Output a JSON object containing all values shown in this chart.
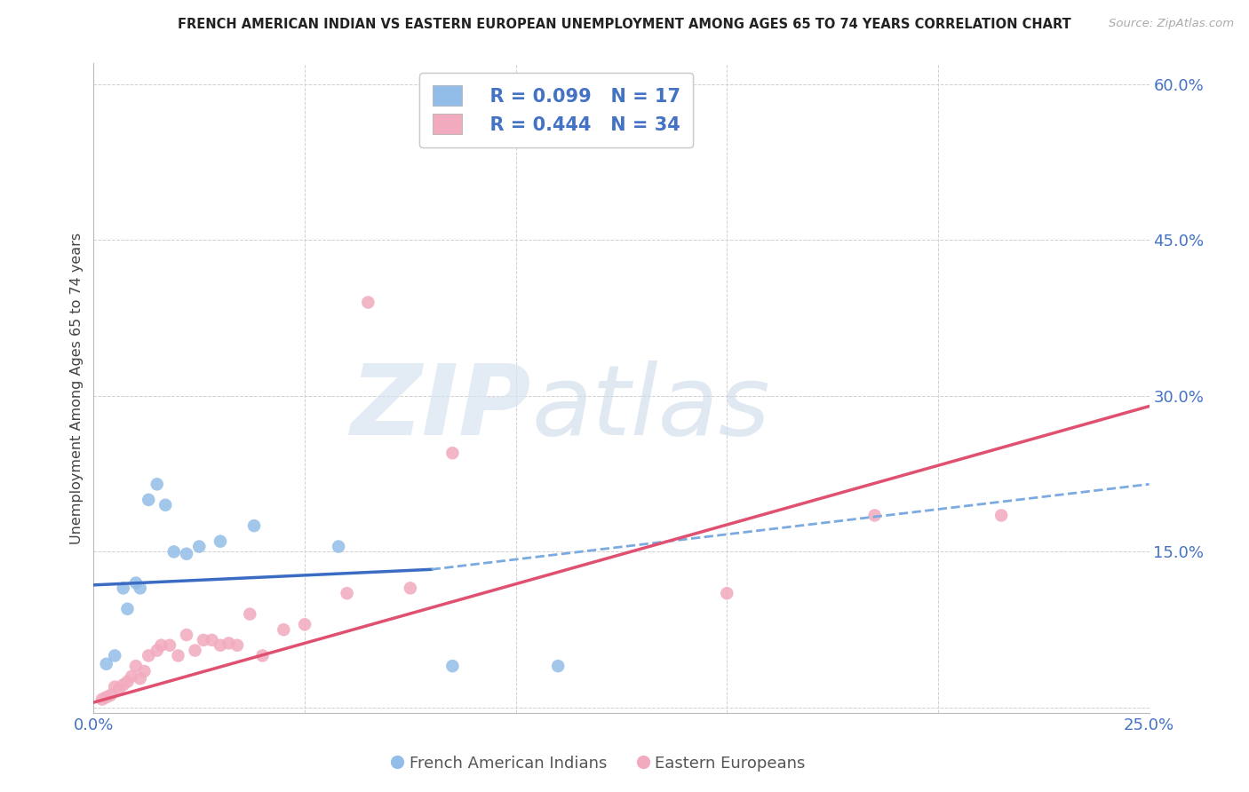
{
  "title": "FRENCH AMERICAN INDIAN VS EASTERN EUROPEAN UNEMPLOYMENT AMONG AGES 65 TO 74 YEARS CORRELATION CHART",
  "source": "Source: ZipAtlas.com",
  "ylabel": "Unemployment Among Ages 65 to 74 years",
  "xlim": [
    0.0,
    0.25
  ],
  "ylim": [
    -0.005,
    0.62
  ],
  "xtick_positions": [
    0.0,
    0.05,
    0.1,
    0.15,
    0.2,
    0.25
  ],
  "xticklabels": [
    "0.0%",
    "",
    "",
    "",
    "",
    "25.0%"
  ],
  "yticks_right": [
    0.0,
    0.15,
    0.3,
    0.45,
    0.6
  ],
  "ytick_right_labels": [
    "",
    "15.0%",
    "30.0%",
    "45.0%",
    "60.0%"
  ],
  "blue_color": "#92BDE8",
  "pink_color": "#F2AABE",
  "line_blue_solid_color": "#3A6CC4",
  "line_pink_color": "#E05070",
  "line_blue_dash_color": "#7AAAE0",
  "text_blue_color": "#4472C4",
  "legend_R_blue": "R = 0.099",
  "legend_N_blue": "N = 17",
  "legend_R_pink": "R = 0.444",
  "legend_N_pink": "N = 34",
  "legend_label_blue": "French American Indians",
  "legend_label_pink": "Eastern Europeans",
  "watermark_zip": "ZIP",
  "watermark_atlas": "atlas",
  "blue_points_x": [
    0.003,
    0.005,
    0.007,
    0.008,
    0.01,
    0.011,
    0.013,
    0.015,
    0.017,
    0.019,
    0.022,
    0.025,
    0.03,
    0.038,
    0.058,
    0.085,
    0.11
  ],
  "blue_points_y": [
    0.042,
    0.05,
    0.115,
    0.095,
    0.12,
    0.115,
    0.2,
    0.215,
    0.195,
    0.15,
    0.148,
    0.155,
    0.16,
    0.175,
    0.155,
    0.04,
    0.04
  ],
  "pink_points_x": [
    0.002,
    0.003,
    0.004,
    0.005,
    0.006,
    0.007,
    0.008,
    0.009,
    0.01,
    0.011,
    0.012,
    0.013,
    0.015,
    0.016,
    0.018,
    0.02,
    0.022,
    0.024,
    0.026,
    0.028,
    0.03,
    0.032,
    0.034,
    0.037,
    0.04,
    0.045,
    0.05,
    0.06,
    0.065,
    0.075,
    0.085,
    0.15,
    0.185,
    0.215
  ],
  "pink_points_y": [
    0.008,
    0.01,
    0.012,
    0.02,
    0.018,
    0.022,
    0.025,
    0.03,
    0.04,
    0.028,
    0.035,
    0.05,
    0.055,
    0.06,
    0.06,
    0.05,
    0.07,
    0.055,
    0.065,
    0.065,
    0.06,
    0.062,
    0.06,
    0.09,
    0.05,
    0.075,
    0.08,
    0.11,
    0.39,
    0.115,
    0.245,
    0.11,
    0.185,
    0.185
  ],
  "blue_solid_trend_x": [
    0.0,
    0.08
  ],
  "blue_solid_trend_y": [
    0.118,
    0.133
  ],
  "blue_dash_trend_x": [
    0.08,
    0.25
  ],
  "blue_dash_trend_y": [
    0.133,
    0.215
  ],
  "pink_trend_x": [
    0.0,
    0.25
  ],
  "pink_trend_y": [
    0.005,
    0.29
  ],
  "grid_color": "#D0D0D0",
  "background_color": "#FFFFFF"
}
